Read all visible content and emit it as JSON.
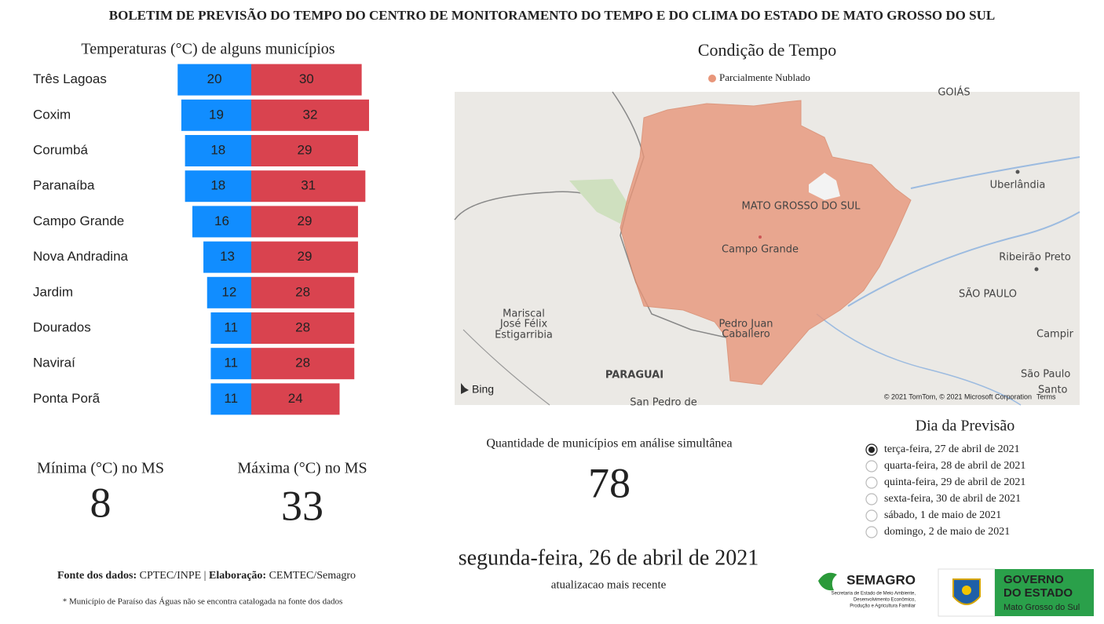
{
  "header": {
    "title": "BOLETIM DE PREVISÃO DO TEMPO DO CENTRO DE MONITORAMENTO DO TEMPO E DO CLIMA DO ESTADO DE MATO GROSSO DO SUL"
  },
  "chart_data": {
    "type": "diverging-bar",
    "title": "Temperaturas (°C) de alguns municípios",
    "categories": [
      "Três Lagoas",
      "Coxim",
      "Corumbá",
      "Paranaíba",
      "Campo Grande",
      "Nova Andradina",
      "Jardim",
      "Dourados",
      "Naviraí",
      "Ponta Porã"
    ],
    "series": [
      {
        "color": "#118dff",
        "values": [
          20,
          19,
          18,
          18,
          16,
          13,
          12,
          11,
          11,
          11
        ]
      },
      {
        "color": "#d9434f",
        "values": [
          30,
          32,
          29,
          31,
          29,
          29,
          28,
          28,
          28,
          24
        ]
      }
    ]
  },
  "map": {
    "title": "Condição de Tempo",
    "legend": {
      "label": "Parcialmente Nublado",
      "color": "#e8967a"
    },
    "labels": [
      "GOIÁS",
      "MATO GROSSO DO SUL",
      "Campo Grande",
      "Uberlândia",
      "Ribeirão Preto",
      "SÃO PAULO",
      "Mariscal",
      "José Félix",
      "Estigarribia",
      "Pedro Juan",
      "Caballero",
      "Campir",
      "PARAGUAI",
      "São Paulo",
      "Santo",
      "San Pedro de"
    ],
    "provider": "Bing",
    "copyright": "© 2021 TomTom, © 2021 Microsoft Corporation",
    "terms": "Terms"
  },
  "kpis": {
    "min_label": "Mínima (°C) no MS",
    "min_value": "8",
    "max_label": "Máxima (°C) no MS",
    "max_value": "33",
    "count_label": "Quantidade de municípios em análise simultânea",
    "count_value": "78",
    "date": "segunda-feira, 26 de abril de 2021",
    "date_label": "atualizacao mais recente"
  },
  "day_picker": {
    "title": "Dia da Previsão",
    "selected": 0,
    "options": [
      "terça-feira, 27 de abril de 2021",
      "quarta-feira, 28 de abril de 2021",
      "quinta-feira, 29 de abril de 2021",
      "sexta-feira, 30 de abril de 2021",
      "sábado, 1 de maio de 2021",
      "domingo, 2 de maio de 2021"
    ]
  },
  "footer": {
    "source_label": "Fonte dos dados:",
    "source": "CPTEC/INPE |",
    "author_label": "Elaboração:",
    "author": "CEMTEC/Semagro",
    "note": "* Município de Paraíso das Águas não se encontra catalogada na fonte dos dados"
  },
  "logos": {
    "semagro": "SEMAGRO",
    "semagro_sub": [
      "Secretaria de Estado de Meio Ambiente,",
      "Desenvolvimento Econômico,",
      "Produção e Agricultura Familiar"
    ],
    "gov_line1": "GOVERNO",
    "gov_line2": "DO ESTADO",
    "gov_line3": "Mato Grosso do Sul"
  }
}
